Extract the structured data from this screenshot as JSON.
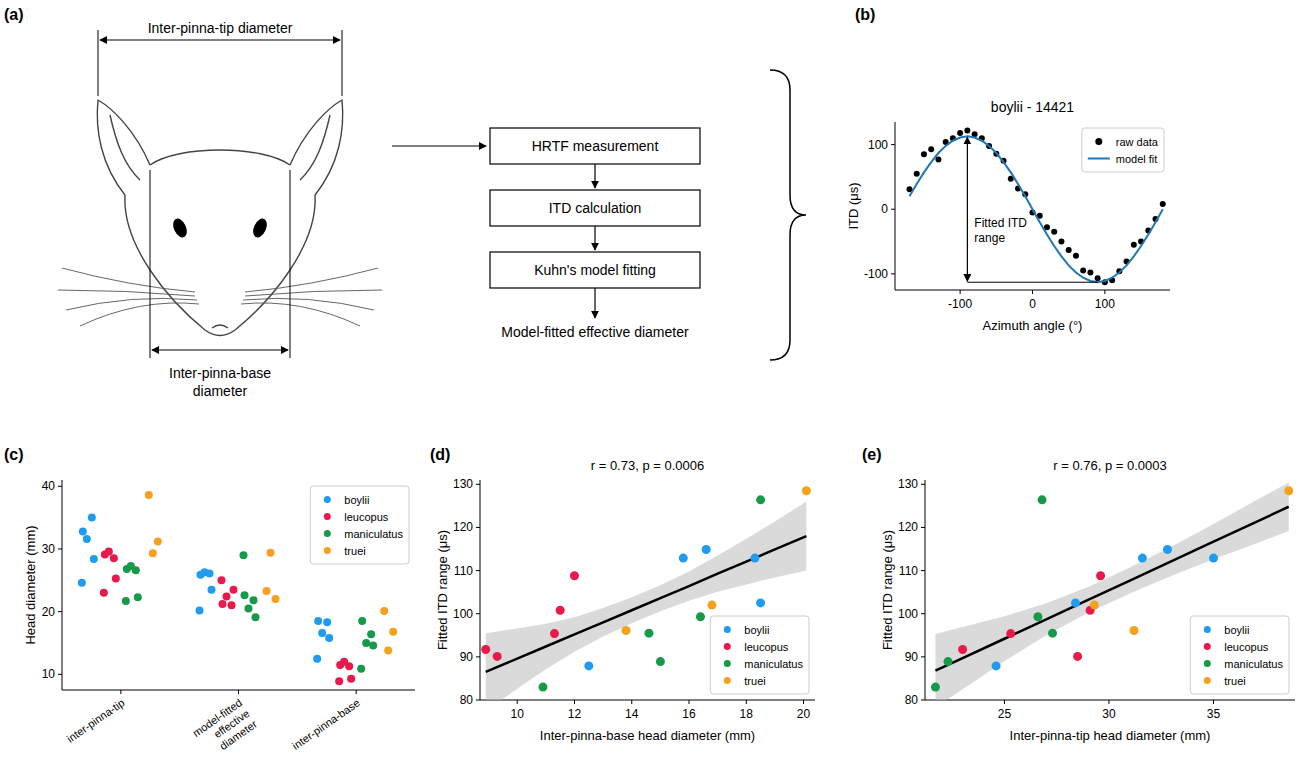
{
  "diagram": {
    "panel": "(a)",
    "tip_label": "Inter-pinna-tip diameter",
    "base_label": "Inter-pinna-base diameter",
    "steps": [
      "HRTF measurement",
      "ITD calculation",
      "Kuhn's model fitting"
    ],
    "output": "Model-fitted effective diameter"
  },
  "chart_data": [
    {
      "panel": "(b)",
      "type": "line",
      "title": "boylii - 14421",
      "x_label": "Azimuth angle (°)",
      "y_label": "ITD (μs)",
      "xlim": [
        -190,
        190
      ],
      "ylim": [
        -125,
        135
      ],
      "xticks": [
        -100,
        0,
        100
      ],
      "yticks": [
        -100,
        0,
        100
      ],
      "grid": false,
      "legend": "upper right",
      "annotation": "Fitted ITD range",
      "series": [
        {
          "name": "raw data",
          "type": "scatter",
          "marker": "circle",
          "color": "#000000",
          "x": [
            -170,
            -160,
            -150,
            -140,
            -130,
            -120,
            -110,
            -100,
            -90,
            -80,
            -70,
            -60,
            -50,
            -40,
            -30,
            -20,
            -10,
            0,
            10,
            20,
            30,
            40,
            50,
            60,
            70,
            80,
            90,
            100,
            110,
            120,
            130,
            140,
            150,
            160,
            170,
            180
          ],
          "values": [
            31,
            55,
            85,
            93,
            77,
            104,
            110,
            118,
            122,
            116,
            110,
            98,
            86,
            75,
            47,
            32,
            23,
            -5,
            -10,
            -28,
            -35,
            -50,
            -63,
            -72,
            -95,
            -98,
            -107,
            -113,
            -110,
            -96,
            -81,
            -55,
            -50,
            -33,
            -15,
            8
          ]
        },
        {
          "name": "model fit",
          "type": "line",
          "color": "#1f77b4",
          "x": [
            -170,
            -160,
            -150,
            -140,
            -130,
            -120,
            -110,
            -100,
            -90,
            -80,
            -70,
            -60,
            -50,
            -40,
            -30,
            -20,
            -10,
            0,
            10,
            20,
            30,
            40,
            50,
            60,
            70,
            80,
            90,
            100,
            110,
            120,
            130,
            140,
            150,
            160,
            170,
            180
          ],
          "values": [
            20,
            39,
            57,
            73,
            87,
            98,
            106,
            111,
            113,
            111,
            106,
            98,
            87,
            73,
            57,
            39,
            20,
            0,
            -20,
            -39,
            -57,
            -73,
            -87,
            -98,
            -106,
            -111,
            -113,
            -111,
            -106,
            -98,
            -87,
            -73,
            -57,
            -39,
            -20,
            0
          ]
        }
      ]
    },
    {
      "panel": "(c)",
      "type": "strip",
      "y_label": "Head diameter (mm)",
      "marker": "circle",
      "categories": [
        "inter-pinna-tip",
        "model-fitted effective diameter",
        "inter-pinna-base"
      ],
      "ylim": [
        7.5,
        41
      ],
      "yticks": [
        10,
        20,
        30,
        40
      ],
      "grid": false,
      "legend": "upper right",
      "series": [
        {
          "name": "boylii",
          "color": "#1f9cf0",
          "values": [
            [
              32.8,
              35.0,
              31.6,
              28.4,
              24.6
            ],
            [
              25.9,
              26.1,
              26.3,
              23.5,
              20.2
            ],
            [
              18.5,
              18.3,
              16.6,
              15.8,
              12.5
            ]
          ]
        },
        {
          "name": "leucopus",
          "color": "#e8194b",
          "values": [
            [
              29.1,
              28.5,
              29.6,
              25.3,
              23.0
            ],
            [
              21.2,
              21.0,
              22.4,
              23.5,
              25.0
            ],
            [
              11.5,
              11.3,
              12.0,
              9.3,
              8.9
            ]
          ]
        },
        {
          "name": "maniculatus",
          "color": "#17994a",
          "values": [
            [
              26.8,
              26.6,
              27.3,
              22.3,
              21.7
            ],
            [
              22.6,
              21.8,
              20.5,
              19.1,
              29.0
            ],
            [
              18.5,
              16.4,
              15.0,
              14.6,
              10.9
            ]
          ]
        },
        {
          "name": "truei",
          "color": "#f5a11e",
          "values": [
            [
              38.6,
              31.2,
              29.3
            ],
            [
              23.3,
              22.0,
              29.4
            ],
            [
              20.1,
              16.8,
              13.8
            ]
          ]
        }
      ]
    },
    {
      "panel": "(d)",
      "type": "scatter",
      "title": "r = 0.73, p = 0.0006",
      "marker": "circle",
      "x_label": "Inter-pinna-base head diameter (mm)",
      "y_label": "Fitted ITD range (μs)",
      "xlim": [
        8.7,
        20.4
      ],
      "ylim": [
        80,
        131
      ],
      "xticks": [
        10,
        12,
        14,
        16,
        18,
        20
      ],
      "yticks": [
        80,
        90,
        100,
        110,
        120,
        130
      ],
      "grid": false,
      "legend": "lower right",
      "series": [
        {
          "name": "boylii",
          "color": "#1f9cf0",
          "x": [
            12.5,
            15.8,
            16.6,
            18.3,
            18.5
          ],
          "values": [
            87.9,
            112.9,
            114.9,
            112.9,
            102.5
          ]
        },
        {
          "name": "leucopus",
          "color": "#e8194b",
          "x": [
            8.9,
            9.3,
            11.3,
            11.5,
            12.0
          ],
          "values": [
            91.7,
            90.1,
            95.4,
            100.8,
            108.8
          ]
        },
        {
          "name": "maniculatus",
          "color": "#17994a",
          "x": [
            10.9,
            14.6,
            15.0,
            16.4,
            18.5
          ],
          "values": [
            83.0,
            95.5,
            88.9,
            99.3,
            126.4
          ]
        },
        {
          "name": "truei",
          "color": "#f5a11e",
          "x": [
            13.8,
            16.8,
            20.1
          ],
          "values": [
            96.1,
            102.0,
            128.5
          ]
        }
      ],
      "regression": {
        "x": [
          8.9,
          10,
          11,
          12,
          13,
          14,
          15,
          16,
          17,
          18,
          19,
          20.1
        ],
        "values": [
          86.5,
          89.6,
          92.4,
          95.2,
          98.0,
          100.8,
          103.6,
          106.4,
          109.3,
          112.1,
          114.9,
          118.0
        ]
      },
      "confidence_band": {
        "x": [
          8.9,
          10,
          11,
          12,
          13,
          14,
          15,
          16,
          17,
          18,
          19,
          20.1
        ],
        "lower": [
          77.5,
          82.6,
          87.1,
          91.2,
          94.7,
          97.8,
          100.6,
          103.0,
          105.1,
          106.8,
          108.4,
          110.0
        ],
        "upper": [
          95.5,
          96.6,
          97.7,
          99.2,
          101.3,
          103.8,
          106.6,
          109.8,
          113.5,
          117.4,
          121.4,
          126.0
        ]
      }
    },
    {
      "panel": "(e)",
      "type": "scatter",
      "title": "r = 0.76, p = 0.0003",
      "marker": "circle",
      "x_label": "Inter-pinna-tip head diameter (mm)",
      "y_label": "Fitted ITD range (μs)",
      "xlim": [
        21.2,
        38.9
      ],
      "ylim": [
        80,
        131
      ],
      "xticks": [
        25,
        30,
        35
      ],
      "yticks": [
        80,
        90,
        100,
        110,
        120,
        130
      ],
      "grid": false,
      "legend": "lower right",
      "series": [
        {
          "name": "boylii",
          "color": "#1f9cf0",
          "x": [
            24.6,
            31.6,
            32.8,
            35.0,
            28.4
          ],
          "values": [
            87.9,
            112.9,
            114.9,
            112.9,
            102.5
          ]
        },
        {
          "name": "leucopus",
          "color": "#e8194b",
          "x": [
            23.0,
            28.5,
            25.3,
            29.1,
            29.6
          ],
          "values": [
            91.7,
            90.1,
            95.4,
            100.8,
            108.8
          ]
        },
        {
          "name": "maniculatus",
          "color": "#17994a",
          "x": [
            21.7,
            27.3,
            22.3,
            26.6,
            26.8
          ],
          "values": [
            83.0,
            95.5,
            88.9,
            99.3,
            126.4
          ]
        },
        {
          "name": "truei",
          "color": "#f5a11e",
          "x": [
            31.2,
            29.3,
            38.6
          ],
          "values": [
            96.1,
            102.0,
            128.5
          ]
        }
      ],
      "regression": {
        "x": [
          21.7,
          23,
          25,
          27,
          29,
          31,
          33,
          35,
          37,
          38.6
        ],
        "values": [
          86.8,
          89.7,
          94.2,
          98.7,
          103.2,
          107.7,
          112.2,
          116.7,
          121.2,
          124.8
        ]
      },
      "confidence_band": {
        "x": [
          21.7,
          23,
          25,
          27,
          29,
          31,
          33,
          35,
          37,
          38.6
        ],
        "lower": [
          78.3,
          82.5,
          89.0,
          95.0,
          100.2,
          104.7,
          108.8,
          112.6,
          116.2,
          119.2
        ],
        "upper": [
          95.3,
          96.9,
          99.4,
          102.4,
          106.2,
          110.7,
          115.6,
          120.8,
          126.2,
          130.4
        ]
      }
    }
  ]
}
